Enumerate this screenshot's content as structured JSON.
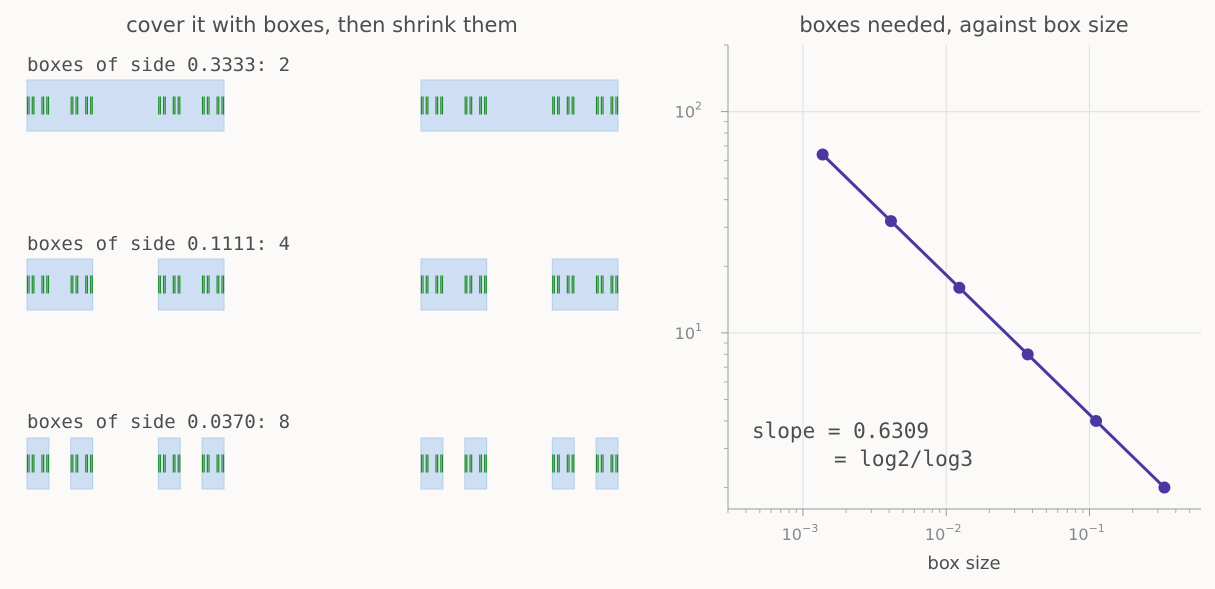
{
  "panels": {
    "left": {
      "title": "cover it with boxes, then shrink them",
      "rows": [
        {
          "label": "boxes of side 0.3333: 2",
          "box_side": 0.3333,
          "box_count": 2
        },
        {
          "label": "boxes of side 0.1111: 4",
          "box_side": 0.1111,
          "box_count": 4
        },
        {
          "label": "boxes of side 0.0370: 8",
          "box_side": 0.037,
          "box_count": 8
        }
      ]
    },
    "right": {
      "title": "boxes needed, against box size",
      "annotation_line1": "slope = 0.6309",
      "annotation_line2": "= log2/log3"
    }
  },
  "colors": {
    "background": "#fbfaf8",
    "box_fill": "#cfdff3",
    "box_stroke": "#b4cde9",
    "cantor_ticks": "#1f8a2b",
    "line": "#4a37a0",
    "grid": "#e3e3e3",
    "text": "#4d4d4d",
    "tick_text": "#888888"
  },
  "chart_data": {
    "type": "line",
    "title": "boxes needed, against box size",
    "xlabel": "box size",
    "ylabel": "",
    "xscale": "log",
    "yscale": "log",
    "xlim": [
      0.0003,
      0.6
    ],
    "ylim": [
      1.6,
      200
    ],
    "grid": true,
    "xticks": [
      {
        "value": 0.001,
        "base": "10",
        "exp": "−3"
      },
      {
        "value": 0.01,
        "base": "10",
        "exp": "−2"
      },
      {
        "value": 0.1,
        "base": "10",
        "exp": "−1"
      }
    ],
    "yticks": [
      {
        "value": 10,
        "base": "10",
        "exp": "1"
      },
      {
        "value": 100,
        "base": "10",
        "exp": "2"
      }
    ],
    "series": [
      {
        "x": [
          0.001372,
          0.004115,
          0.012346,
          0.037037,
          0.111111,
          0.333333
        ],
        "y": [
          64,
          32,
          16,
          8,
          4,
          2
        ]
      }
    ],
    "annotation": [
      "slope = 0.6309",
      "= log2/log3"
    ]
  }
}
